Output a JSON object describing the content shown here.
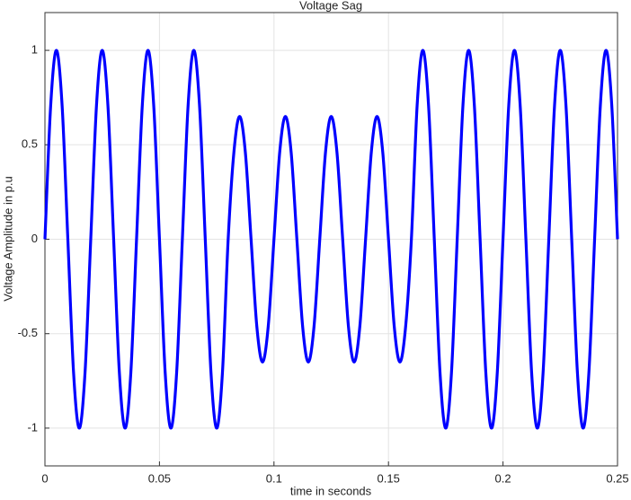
{
  "chart_data": {
    "type": "line",
    "title": "Voltage Sag",
    "x_label": "time in seconds",
    "y_label": "Voltage Amplitude in p.u",
    "x": [
      0,
      0.0025,
      0.005,
      0.0075,
      0.01,
      0.0125,
      0.015,
      0.0175,
      0.02,
      0.0225,
      0.025,
      0.0275,
      0.03,
      0.0325,
      0.035,
      0.0375,
      0.04,
      0.0425,
      0.045,
      0.0475,
      0.05,
      0.0525,
      0.055,
      0.0575,
      0.06,
      0.0625,
      0.065,
      0.0675,
      0.07,
      0.0725,
      0.075,
      0.0775,
      0.08,
      0.0825,
      0.085,
      0.0875,
      0.09,
      0.0925,
      0.095,
      0.0975,
      0.1,
      0.1025,
      0.105,
      0.1075,
      0.11,
      0.1125,
      0.115,
      0.1175,
      0.12,
      0.1225,
      0.125,
      0.1275,
      0.13,
      0.1325,
      0.135,
      0.1375,
      0.14,
      0.1425,
      0.145,
      0.1475,
      0.15,
      0.1525,
      0.155,
      0.1575,
      0.16,
      0.1625,
      0.165,
      0.1675,
      0.17,
      0.1725,
      0.175,
      0.1775,
      0.18,
      0.1825,
      0.185,
      0.1875,
      0.19,
      0.1925,
      0.195,
      0.1975,
      0.2,
      0.2025,
      0.205,
      0.2075,
      0.21,
      0.2125,
      0.215,
      0.2175,
      0.22,
      0.2225,
      0.225,
      0.2275,
      0.23,
      0.2325,
      0.235,
      0.2375,
      0.24,
      0.2425,
      0.245,
      0.2475,
      0.25
    ],
    "series": [
      {
        "name": "Voltage",
        "color": "#0000ff",
        "values": [
          0,
          0.707,
          1,
          0.707,
          0,
          -0.707,
          -1,
          -0.707,
          0,
          0.707,
          1,
          0.707,
          0,
          -0.707,
          -1,
          -0.707,
          0,
          0.707,
          1,
          0.707,
          0,
          -0.707,
          -1,
          -0.707,
          0,
          0.707,
          1,
          0.707,
          0,
          -0.707,
          -1,
          -0.707,
          0,
          0.46,
          0.65,
          0.46,
          0,
          -0.46,
          -0.65,
          -0.46,
          0,
          0.46,
          0.65,
          0.46,
          0,
          -0.46,
          -0.65,
          -0.46,
          0,
          0.46,
          0.65,
          0.46,
          0,
          -0.46,
          -0.65,
          -0.46,
          0,
          0.46,
          0.65,
          0.46,
          0,
          -0.46,
          -0.65,
          -0.46,
          0,
          0.707,
          1,
          0.707,
          0,
          -0.707,
          -1,
          -0.707,
          0,
          0.707,
          1,
          0.707,
          0,
          -0.707,
          -1,
          -0.707,
          0,
          0.707,
          1,
          0.707,
          0,
          -0.707,
          -1,
          -0.707,
          0,
          0.707,
          1,
          0.707,
          0,
          -0.707,
          -1,
          -0.707,
          0,
          0.707,
          1,
          0.707,
          0
        ]
      }
    ],
    "xlim": [
      0,
      0.25
    ],
    "xticks": [
      0,
      0.05,
      0.1,
      0.15,
      0.2,
      0.25
    ],
    "ylim": [
      -1.2,
      1.2
    ],
    "yticks": [
      -1,
      -0.5,
      0,
      0.5,
      1
    ],
    "grid": true
  }
}
